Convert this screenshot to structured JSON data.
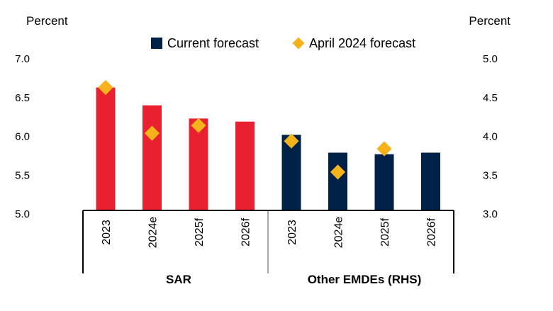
{
  "chart_data": {
    "type": "bar",
    "left_axis_label": "Percent",
    "right_axis_label": "Percent",
    "left_ylim": [
      5.0,
      7.0
    ],
    "right_ylim": [
      3.0,
      5.0
    ],
    "left_ticks": [
      "5.0",
      "5.5",
      "6.0",
      "6.5",
      "7.0"
    ],
    "right_ticks": [
      "3.0",
      "3.5",
      "4.0",
      "4.5",
      "5.0"
    ],
    "grid": false,
    "legend_position": "top-center",
    "legend": {
      "current": "Current forecast",
      "april": "April 2024 forecast"
    },
    "colors": {
      "sar_bar": "#e8202f",
      "emde_bar": "#002147",
      "diamond": "#f5b21a"
    },
    "groups": [
      {
        "name": "SAR",
        "axis": "left",
        "categories": [
          "2023",
          "2024e",
          "2025f",
          "2026f"
        ],
        "current": [
          6.63,
          6.4,
          6.23,
          6.19
        ],
        "april": [
          6.63,
          6.04,
          6.14,
          null
        ]
      },
      {
        "name": "Other EMDEs (RHS)",
        "axis": "right",
        "categories": [
          "2023",
          "2024e",
          "2025f",
          "2026f"
        ],
        "current": [
          4.02,
          3.79,
          3.77,
          3.79
        ],
        "april": [
          3.94,
          3.54,
          3.84,
          null
        ]
      }
    ]
  }
}
